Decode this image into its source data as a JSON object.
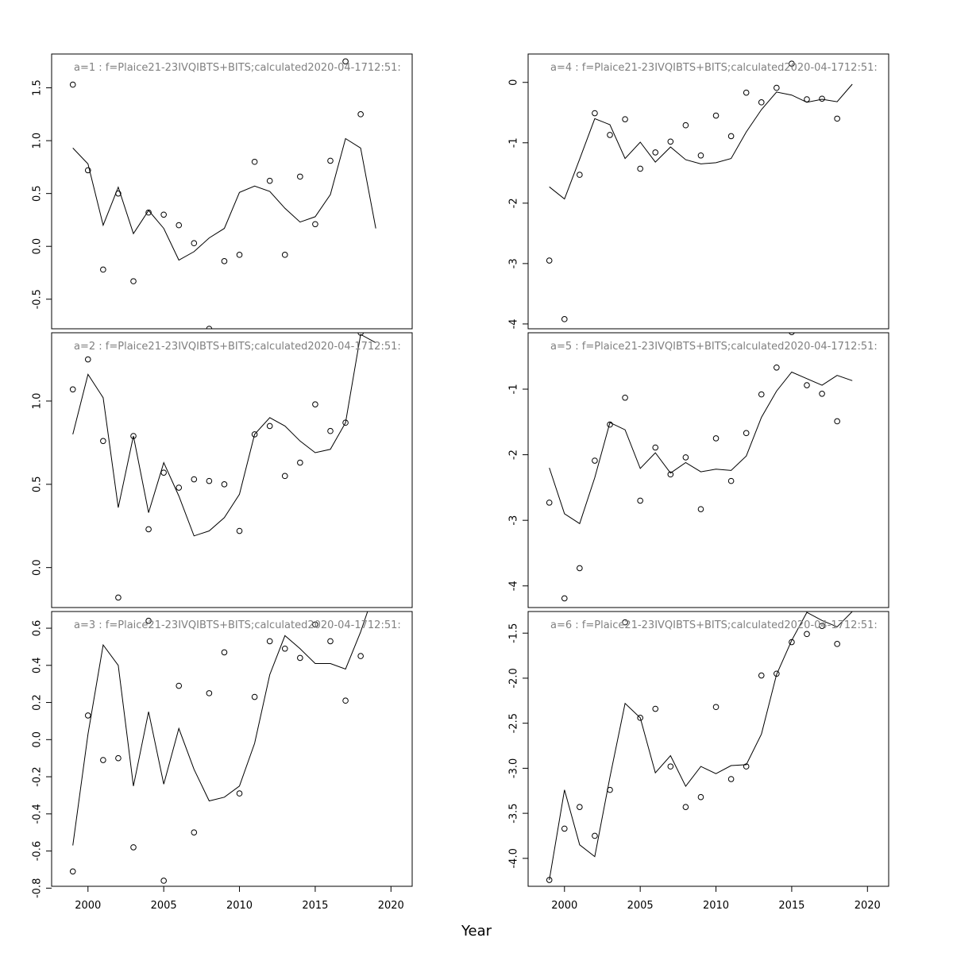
{
  "chart_data": {
    "type": "scatter",
    "xlabel": "Year",
    "x_ticks": [
      2000,
      2005,
      2010,
      2015,
      2020
    ],
    "xlim": [
      1997.6,
      2021.4
    ],
    "years": [
      1999,
      2000,
      2001,
      2002,
      2003,
      2004,
      2005,
      2006,
      2007,
      2008,
      2009,
      2010,
      2011,
      2012,
      2013,
      2014,
      2015,
      2016,
      2017,
      2018,
      2019
    ],
    "legend": "none",
    "panels": [
      {
        "title": "a=1  :  f=Plaice21-23IVQIBTS+BITS;calculated2020-04-1712:51:",
        "ylim": [
          -0.78,
          1.82
        ],
        "yticks": [
          -0.5,
          0.0,
          0.5,
          1.0,
          1.5
        ],
        "ytick_labels": [
          "-0.5",
          "0.0",
          "0.5",
          "1.0",
          "1.5"
        ],
        "points": [
          1.53,
          0.72,
          -0.22,
          0.5,
          -0.33,
          0.32,
          0.3,
          0.2,
          0.03,
          -0.78,
          -0.14,
          -0.08,
          0.8,
          0.62,
          -0.08,
          0.66,
          0.21,
          0.81,
          1.75,
          1.25,
          null
        ],
        "fitted": [
          0.93,
          0.78,
          0.2,
          0.56,
          0.12,
          0.34,
          0.17,
          -0.13,
          -0.05,
          0.08,
          0.17,
          0.51,
          0.57,
          0.52,
          0.36,
          0.23,
          0.28,
          0.49,
          1.02,
          0.93,
          0.17
        ]
      },
      {
        "title": "a=2  :  f=Plaice21-23IVQIBTS+BITS;calculated2020-04-1712:51:",
        "ylim": [
          -0.24,
          1.41
        ],
        "yticks": [
          0.0,
          0.5,
          1.0
        ],
        "ytick_labels": [
          "0.0",
          "0.5",
          "1.0"
        ],
        "points": [
          1.07,
          1.25,
          0.76,
          -0.18,
          0.79,
          0.23,
          0.57,
          0.48,
          0.53,
          0.52,
          0.5,
          0.22,
          0.8,
          0.85,
          0.55,
          0.63,
          0.98,
          0.82,
          0.87,
          1.41,
          null
        ],
        "fitted": [
          0.8,
          1.16,
          1.02,
          0.36,
          0.79,
          0.33,
          0.63,
          0.43,
          0.19,
          0.22,
          0.3,
          0.44,
          0.8,
          0.9,
          0.85,
          0.76,
          0.69,
          0.71,
          0.87,
          1.4,
          1.35
        ]
      },
      {
        "title": "a=3  :  f=Plaice21-23IVQIBTS+BITS;calculated2020-04-1712:51:",
        "ylim": [
          -0.79,
          0.69
        ],
        "yticks": [
          -0.8,
          -0.6,
          -0.4,
          -0.2,
          0.0,
          0.2,
          0.4,
          0.6
        ],
        "ytick_labels": [
          "-0.8",
          "-0.6",
          "-0.4",
          "-0.2",
          "0.0",
          "0.2",
          "0.4",
          "0.6"
        ],
        "points": [
          -0.71,
          0.13,
          -0.11,
          -0.1,
          -0.58,
          0.64,
          -0.76,
          0.29,
          -0.5,
          0.25,
          0.47,
          -0.29,
          0.23,
          0.53,
          0.49,
          0.44,
          0.62,
          0.53,
          0.21,
          0.45,
          null
        ],
        "fitted": [
          -0.57,
          0.03,
          0.51,
          0.4,
          -0.25,
          0.15,
          -0.24,
          0.06,
          -0.16,
          -0.33,
          -0.31,
          -0.25,
          -0.02,
          0.35,
          0.56,
          0.49,
          0.41,
          0.41,
          0.38,
          0.58,
          0.82
        ]
      },
      {
        "title": "a=4  :  f=Plaice21-23IVQIBTS+BITS;calculated2020-04-1712:51:",
        "ylim": [
          -4.08,
          0.47
        ],
        "yticks": [
          -4,
          -3,
          -2,
          -1,
          0
        ],
        "ytick_labels": [
          "-4",
          "-3",
          "-2",
          "-1",
          "0"
        ],
        "points": [
          -2.95,
          -3.92,
          -1.53,
          -0.51,
          -0.87,
          -0.61,
          -1.43,
          -1.16,
          -0.98,
          -0.71,
          -1.21,
          -0.55,
          -0.89,
          -0.17,
          -0.33,
          -0.09,
          0.31,
          -0.28,
          -0.27,
          -0.6,
          null
        ],
        "fitted": [
          -1.73,
          -1.93,
          -1.27,
          -0.6,
          -0.7,
          -1.26,
          -0.99,
          -1.32,
          -1.07,
          -1.28,
          -1.35,
          -1.33,
          -1.26,
          -0.82,
          -0.45,
          -0.16,
          -0.21,
          -0.33,
          -0.28,
          -0.32,
          -0.03
        ]
      },
      {
        "title": "a=5  :  f=Plaice21-23IVQIBTS+BITS;calculated2020-04-1712:51:",
        "ylim": [
          -4.33,
          -0.14
        ],
        "yticks": [
          -4,
          -3,
          -2,
          -1
        ],
        "ytick_labels": [
          "-4",
          "-3",
          "-2",
          "-1"
        ],
        "points": [
          -2.73,
          -4.19,
          -3.73,
          -2.09,
          -1.54,
          -1.13,
          -2.7,
          -1.89,
          -2.3,
          -2.04,
          -2.83,
          -1.75,
          -2.4,
          -1.67,
          -1.08,
          -0.67,
          -0.13,
          -0.94,
          -1.07,
          -1.49,
          null
        ],
        "fitted": [
          -2.2,
          -2.9,
          -3.05,
          -2.35,
          -1.51,
          -1.62,
          -2.21,
          -1.97,
          -2.28,
          -2.12,
          -2.26,
          -2.22,
          -2.24,
          -2.02,
          -1.43,
          -1.03,
          -0.74,
          -0.84,
          -0.94,
          -0.79,
          -0.87
        ]
      },
      {
        "title": "a=6  :  f=Plaice21-23IVQIBTS+BITS;calculated2020-04-1712:51:",
        "ylim": [
          -4.31,
          -1.26
        ],
        "yticks": [
          -4.0,
          -3.5,
          -3.0,
          -2.5,
          -2.0,
          -1.5
        ],
        "ytick_labels": [
          "-4.0",
          "-3.5",
          "-3.0",
          "-2.5",
          "-2.0",
          "-1.5"
        ],
        "points": [
          -4.24,
          -3.67,
          -3.43,
          -3.75,
          -3.24,
          -1.38,
          -2.44,
          -2.34,
          -2.98,
          -3.43,
          -3.32,
          -2.32,
          -3.12,
          -2.98,
          -1.97,
          -1.95,
          -1.6,
          -1.51,
          -1.42,
          -1.62,
          null
        ],
        "fitted": [
          -4.24,
          -3.24,
          -3.85,
          -3.98,
          -3.1,
          -2.28,
          -2.44,
          -3.05,
          -2.86,
          -3.2,
          -2.98,
          -3.06,
          -2.97,
          -2.96,
          -2.62,
          -1.96,
          -1.58,
          -1.27,
          -1.36,
          -1.43,
          -1.26
        ]
      }
    ]
  }
}
